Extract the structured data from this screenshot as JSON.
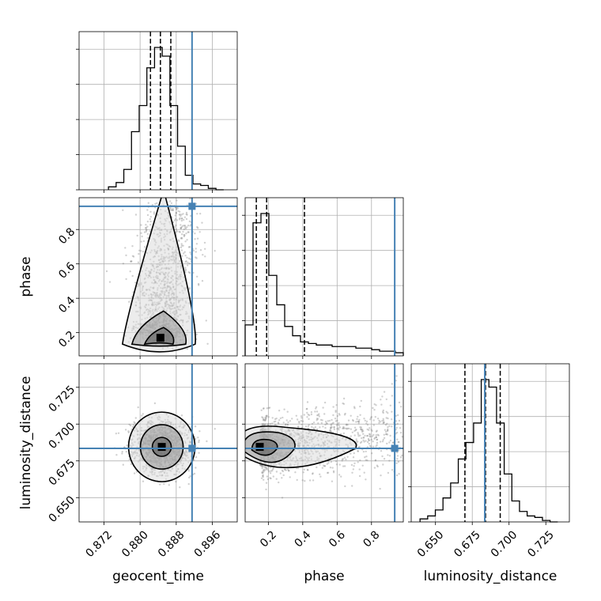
{
  "chart_data": {
    "type": "corner",
    "parameters": [
      "geocent_time",
      "phase",
      "luminosity_distance"
    ],
    "truths": {
      "geocent_time": 0.8915,
      "phase": 0.935,
      "luminosity_distance": 0.6835
    },
    "truth_color": "#4682b4",
    "grid": true,
    "axes": {
      "geocent_time": {
        "lim": [
          0.8665,
          0.9015
        ],
        "ticks": [
          0.872,
          0.88,
          0.888,
          0.896
        ],
        "tick_labels": [
          "0.872",
          "0.880",
          "0.888",
          "0.896"
        ]
      },
      "phase": {
        "lim": [
          0.065,
          0.985
        ],
        "ticks": [
          0.2,
          0.4,
          0.6,
          0.8
        ],
        "tick_labels": [
          "0.2",
          "0.4",
          "0.6",
          "0.8"
        ]
      },
      "luminosity_distance": {
        "lim": [
          0.6335,
          0.741
        ],
        "ticks": [
          0.65,
          0.675,
          0.7,
          0.725
        ],
        "tick_labels": [
          "0.650",
          "0.675",
          "0.700",
          "0.725"
        ]
      }
    },
    "histograms": {
      "geocent_time": {
        "bin_edges": [
          0.873,
          0.8747,
          0.8764,
          0.8781,
          0.8798,
          0.8815,
          0.8832,
          0.8849,
          0.8866,
          0.8883,
          0.89,
          0.8917,
          0.8934,
          0.8951,
          0.8968,
          0.8985
        ],
        "counts": [
          0.02,
          0.05,
          0.14,
          0.4,
          0.58,
          0.84,
          0.98,
          0.92,
          0.58,
          0.3,
          0.1,
          0.04,
          0.03,
          0.01,
          0.0
        ],
        "quantiles": [
          0.8823,
          0.8845,
          0.8868
        ]
      },
      "phase": {
        "bin_edges": [
          0.065,
          0.111,
          0.157,
          0.203,
          0.249,
          0.295,
          0.341,
          0.387,
          0.433,
          0.479,
          0.525,
          0.571,
          0.617,
          0.663,
          0.709,
          0.755,
          0.801,
          0.847,
          0.893,
          0.939,
          0.985
        ],
        "counts": [
          0.2,
          0.86,
          0.92,
          0.52,
          0.33,
          0.19,
          0.13,
          0.09,
          0.08,
          0.07,
          0.07,
          0.06,
          0.06,
          0.06,
          0.05,
          0.05,
          0.04,
          0.03,
          0.03,
          0.02
        ],
        "quantiles": [
          0.13,
          0.19,
          0.41
        ]
      },
      "luminosity_distance": {
        "bin_edges": [
          0.6395,
          0.6447,
          0.6499,
          0.6551,
          0.6603,
          0.6655,
          0.6707,
          0.6759,
          0.6811,
          0.6863,
          0.6915,
          0.6967,
          0.7019,
          0.7071,
          0.7123,
          0.7175,
          0.7227,
          0.7279,
          0.7331
        ],
        "counts": [
          0.02,
          0.04,
          0.08,
          0.16,
          0.26,
          0.42,
          0.53,
          0.66,
          0.95,
          0.9,
          0.66,
          0.32,
          0.14,
          0.07,
          0.04,
          0.03,
          0.01,
          0.0
        ],
        "quantiles": [
          0.67,
          0.684,
          0.694
        ]
      }
    },
    "joint": [
      {
        "x": "geocent_time",
        "y": "phase",
        "center": [
          0.8845,
          0.17
        ],
        "mode": [
          0.8845,
          0.17
        ]
      },
      {
        "x": "geocent_time",
        "y": "luminosity_distance",
        "center": [
          0.8848,
          0.6845
        ],
        "mode": [
          0.8848,
          0.6845
        ]
      },
      {
        "x": "phase",
        "y": "luminosity_distance",
        "center": [
          0.15,
          0.6845
        ],
        "mode": [
          0.15,
          0.6845
        ]
      }
    ]
  }
}
